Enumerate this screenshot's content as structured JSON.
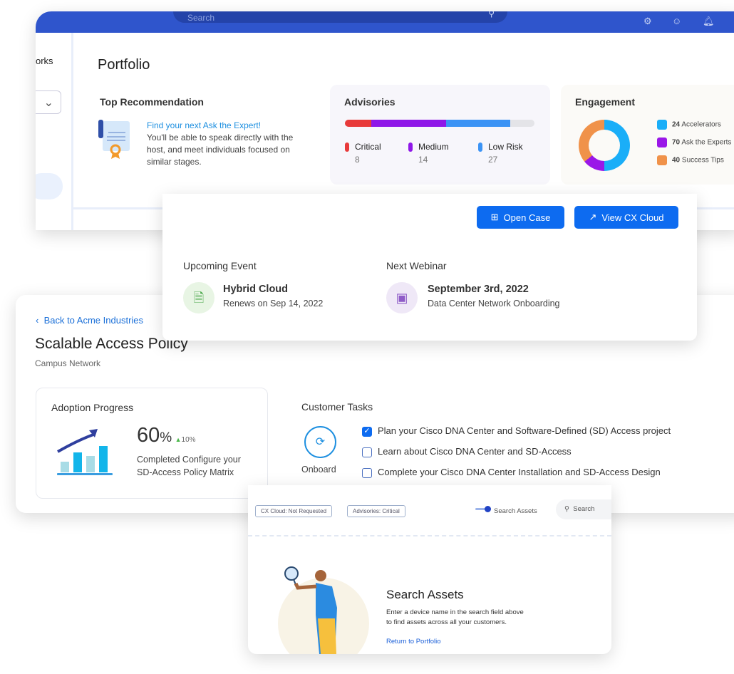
{
  "portfolio_window": {
    "search_placeholder": "Search",
    "sidebar_partial_label": "orks",
    "title": "Portfolio",
    "top_recommendation": {
      "heading": "Top Recommendation",
      "link": "Find your next Ask the Expert!",
      "body": "You'll be able to speak directly with the host, and meet individuals focused on similar stages."
    },
    "advisories": {
      "heading": "Advisories",
      "items": [
        {
          "label": "Critical",
          "count": "8",
          "color": "#e83a3a"
        },
        {
          "label": "Medium",
          "count": "14",
          "color": "#8f17e8"
        },
        {
          "label": "Low Risk",
          "count": "27",
          "color": "#3b93f5"
        }
      ]
    },
    "engagement": {
      "heading": "Engagement",
      "items": [
        {
          "count": "24",
          "label": "Accelerators",
          "color": "#1aaef8"
        },
        {
          "count": "70",
          "label": "Ask the Experts",
          "color": "#9a17e8"
        },
        {
          "count": "40",
          "label": "Success Tips",
          "color": "#f0924a"
        }
      ]
    }
  },
  "events_card": {
    "open_case": "Open Case",
    "view_cx_cloud": "View CX Cloud",
    "upcoming": {
      "heading": "Upcoming Event",
      "title": "Hybrid Cloud",
      "sub": "Renews on Sep 14, 2022"
    },
    "webinar": {
      "heading": "Next Webinar",
      "title": "September 3rd, 2022",
      "sub": "Data Center Network Onboarding"
    }
  },
  "policy_card": {
    "back": "Back to Acme Industries",
    "title": "Scalable Access Policy",
    "subtitle": "Campus Network",
    "adoption": {
      "heading": "Adoption Progress",
      "value": "60",
      "unit": "%",
      "delta": "10%",
      "desc1": "Completed Configure your",
      "desc2": "SD-Access Policy Matrix"
    },
    "tasks": {
      "heading": "Customer Tasks",
      "stage": "Onboard",
      "items": [
        {
          "label": "Plan your Cisco DNA Center and Software-Defined (SD) Access project",
          "checked": true
        },
        {
          "label": "Learn about Cisco DNA Center and SD-Access",
          "checked": false
        },
        {
          "label": "Complete your Cisco DNA Center Installation and SD-Access Design",
          "checked": false
        }
      ]
    }
  },
  "assets_card": {
    "tag1": "CX Cloud: Not Requested",
    "tag2": "Advisories: Critical",
    "toggle_label": "Search Assets",
    "search_placeholder": "Search",
    "title": "Search Assets",
    "desc1": "Enter a device name in the search field above",
    "desc2": "to find assets across all your customers.",
    "link": "Return to Portfolio"
  }
}
